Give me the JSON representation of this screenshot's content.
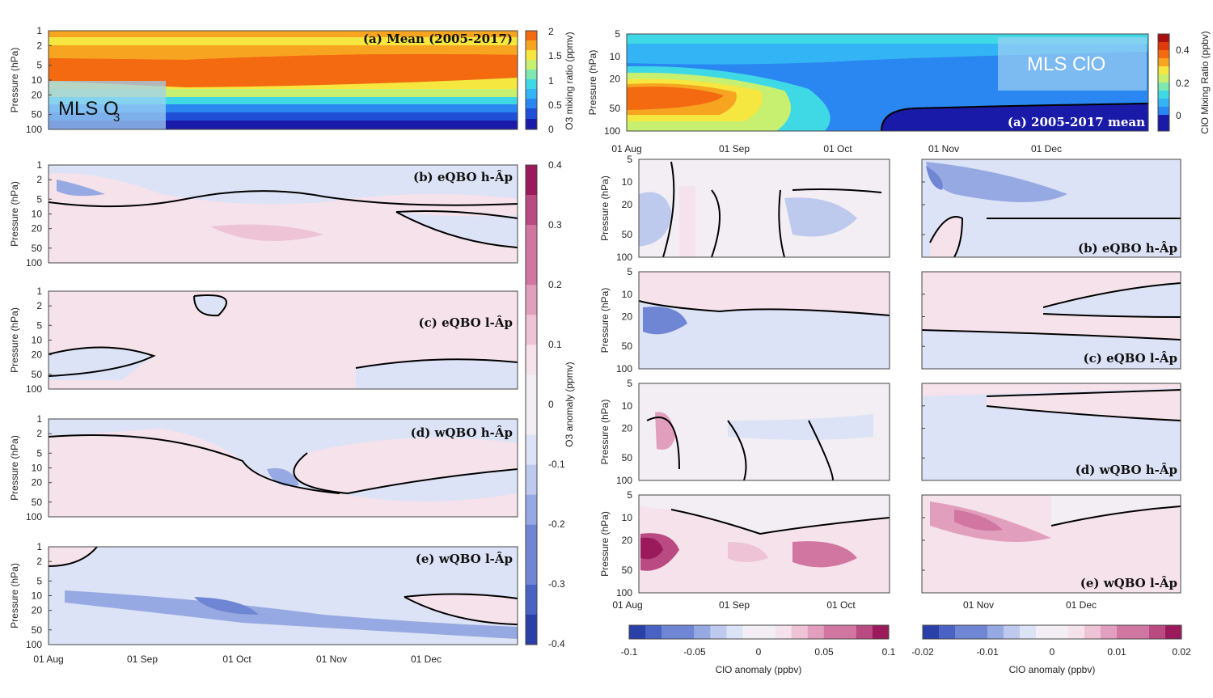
{
  "chart_data": [
    {
      "type": "heatmap",
      "title": "(a) Mean (2005-2017)",
      "overlay_label": "MLS O",
      "overlay_sub": "3",
      "ylabel": "Pressure (hPa)",
      "yticks": [
        "1",
        "2",
        "5",
        "10",
        "20",
        "50",
        "100"
      ],
      "colorbar_label": "O3 mixing ratio (ppmv)",
      "colorbar_ticks": [
        "0",
        "0.5",
        "1",
        "1.5",
        "2"
      ],
      "colorbar_range": [
        0,
        2
      ]
    },
    {
      "type": "heatmap",
      "panels": [
        {
          "title": "(b) eQBO h-Âp"
        },
        {
          "title": "(c) eQBO l-Âp"
        },
        {
          "title": "(d) wQBO h-Âp"
        },
        {
          "title": "(e) wQBO l-Âp"
        }
      ],
      "ylabel": "Pressure (hPa)",
      "yticks": [
        "1",
        "2",
        "5",
        "10",
        "20",
        "50",
        "100"
      ],
      "xticks": [
        "01 Aug",
        "01 Sep",
        "01 Oct",
        "01 Nov",
        "01 Dec"
      ],
      "colorbar_label": "O3 anomaly (ppmv)",
      "colorbar_ticks": [
        "0.4",
        "0.3",
        "0.2",
        "0.1",
        "0",
        "-0.1",
        "-0.2",
        "-0.3",
        "-0.4"
      ],
      "colorbar_range": [
        -0.4,
        0.4
      ]
    },
    {
      "type": "heatmap",
      "title": "(a) 2005-2017 mean",
      "overlay_label": "MLS ClO",
      "ylabel": "Pressure (hPa)",
      "yticks": [
        "5",
        "10",
        "20",
        "50",
        "100"
      ],
      "xticks": [
        "01 Aug",
        "01 Sep",
        "01 Oct",
        "01 Nov",
        "01 Dec"
      ],
      "colorbar_label": "ClO Mixing Ratio (ppbv)",
      "colorbar_ticks": [
        "0.4",
        "0.2",
        "0"
      ],
      "colorbar_range": [
        -0.1,
        0.5
      ]
    },
    {
      "type": "heatmap",
      "panels": [
        {
          "title": "(b) eQBO h-Âp"
        },
        {
          "title": "(c) eQBO l-Âp"
        },
        {
          "title": "(d) wQBO h-Âp"
        },
        {
          "title": "(e) wQBO l-Âp"
        }
      ],
      "ylabel": "Pressure (hPa)",
      "yticks": [
        "5",
        "10",
        "20",
        "50",
        "100"
      ],
      "xticks_left": [
        "01 Aug",
        "01 Sep",
        "01 Oct"
      ],
      "xticks_right": [
        "01 Nov",
        "01 Dec"
      ],
      "colorbar_left": {
        "label": "ClO anomaly (ppbv)",
        "ticks": [
          "-0.1",
          "-0.05",
          "0",
          "0.05",
          "0.1"
        ],
        "range": [
          -0.1,
          0.1
        ]
      },
      "colorbar_right": {
        "label": "ClO anomaly (ppbv)",
        "ticks": [
          "-0.02",
          "-0.01",
          "0",
          "0.01",
          "0.02"
        ],
        "range": [
          -0.02,
          0.02
        ]
      }
    }
  ],
  "colors": {
    "jet": [
      "#1a1aa8",
      "#1f4fd6",
      "#2a86f0",
      "#33b4f5",
      "#3fd9e6",
      "#7fe8b0",
      "#c8f070",
      "#f5e640",
      "#f7a520",
      "#f36a10",
      "#e13a0a",
      "#a81010"
    ],
    "diverging": [
      "#2b3fa8",
      "#4a62c2",
      "#6f86d4",
      "#97a9e2",
      "#bec9ee",
      "#dde3f6",
      "#f2eef4",
      "#f6e2ea",
      "#eec3d5",
      "#e29fbd",
      "#d176a1",
      "#b94a82",
      "#9a1a5c"
    ],
    "overlay_box": "#9fd0f2"
  }
}
